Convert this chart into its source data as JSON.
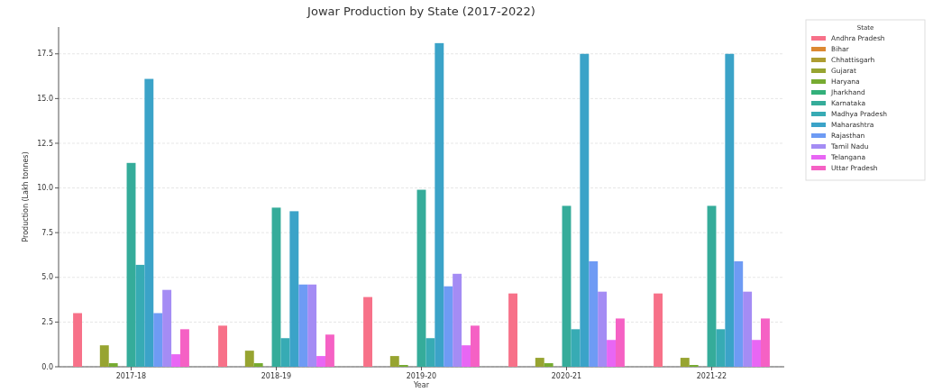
{
  "chart_data": {
    "type": "bar",
    "title": "Jowar Production by State (2017-2022)",
    "xlabel": "Year",
    "ylabel": "Production (Lakh tonnes)",
    "legend_title": "State",
    "categories": [
      "2017-18",
      "2018-19",
      "2019-20",
      "2020-21",
      "2021-22"
    ],
    "series": [
      {
        "name": "Andhra Pradesh",
        "color": "#f77189",
        "values": [
          3.0,
          2.3,
          3.9,
          4.1,
          4.1
        ]
      },
      {
        "name": "Bihar",
        "color": "#dc8932",
        "values": [
          0,
          0,
          0,
          0,
          0
        ]
      },
      {
        "name": "Chhattisgarh",
        "color": "#ae9d31",
        "values": [
          0,
          0,
          0,
          0,
          0
        ]
      },
      {
        "name": "Gujarat",
        "color": "#97a431",
        "values": [
          1.2,
          0.9,
          0.6,
          0.5,
          0.5
        ]
      },
      {
        "name": "Haryana",
        "color": "#77ab31",
        "values": [
          0.2,
          0.2,
          0.1,
          0.2,
          0.1
        ]
      },
      {
        "name": "Jharkhand",
        "color": "#33b07a",
        "values": [
          0,
          0,
          0,
          0,
          0
        ]
      },
      {
        "name": "Karnataka",
        "color": "#35ac9a",
        "values": [
          11.4,
          8.9,
          9.9,
          9.0,
          9.0
        ]
      },
      {
        "name": "Madhya Pradesh",
        "color": "#37abb4",
        "values": [
          5.7,
          1.6,
          1.6,
          2.1,
          2.1
        ]
      },
      {
        "name": "Maharashtra",
        "color": "#3ba3c8",
        "values": [
          16.1,
          8.7,
          18.1,
          17.5,
          17.5
        ]
      },
      {
        "name": "Rajasthan",
        "color": "#6e9bf4",
        "values": [
          3.0,
          4.6,
          4.5,
          5.9,
          5.9
        ]
      },
      {
        "name": "Tamil Nadu",
        "color": "#a48cf4",
        "values": [
          4.3,
          4.6,
          5.2,
          4.2,
          4.2
        ]
      },
      {
        "name": "Telangana",
        "color": "#e866f4",
        "values": [
          0.7,
          0.6,
          1.2,
          1.5,
          1.5
        ]
      },
      {
        "name": "Uttar Pradesh",
        "color": "#f561c4",
        "values": [
          2.1,
          1.8,
          2.3,
          2.7,
          2.7
        ]
      }
    ],
    "ylim": [
      0,
      19
    ],
    "yticks": [
      {
        "value": 0,
        "label": "0.0"
      },
      {
        "value": 2.5,
        "label": "2.5"
      },
      {
        "value": 5,
        "label": "5.0"
      },
      {
        "value": 7.5,
        "label": "7.5"
      },
      {
        "value": 10,
        "label": "10.0"
      },
      {
        "value": 12.5,
        "label": "12.5"
      },
      {
        "value": 15,
        "label": "15.0"
      },
      {
        "value": 17.5,
        "label": "17.5"
      }
    ],
    "grid": "y",
    "legend": "top right"
  }
}
